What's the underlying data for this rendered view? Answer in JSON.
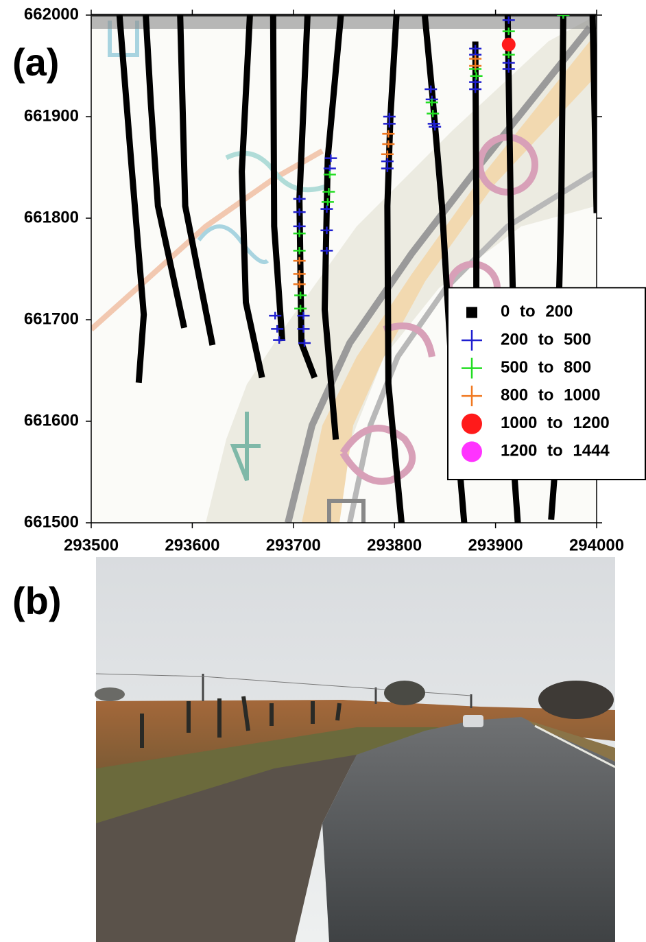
{
  "panel_labels": [
    "(a)",
    "(b)"
  ],
  "chart_data": {
    "type": "track",
    "xlim": [
      293500,
      294000
    ],
    "ylim": [
      661500,
      662000
    ],
    "xticks": [
      293500,
      293600,
      293700,
      293800,
      293900,
      294000
    ],
    "yticks": [
      661500,
      661600,
      661700,
      661800,
      661900,
      662000
    ],
    "legend": "right",
    "series": [
      {
        "name": "0 to 200",
        "color": "#000000",
        "marker": "square",
        "x": [
          [
            293528,
            293540,
            293552,
            293547
          ],
          [
            293554,
            293559,
            293566,
            293592
          ],
          [
            293588,
            293593,
            293620
          ],
          [
            293657,
            293649,
            293653,
            293669
          ],
          [
            293680,
            293681,
            293689
          ],
          [
            293714,
            293706,
            293708,
            293721
          ],
          [
            293747,
            293734,
            293731,
            293742
          ],
          [
            293802,
            293796,
            293793,
            293794,
            293807
          ],
          [
            293830,
            293837,
            293847,
            293857,
            293869
          ],
          [
            293880,
            293881,
            293881
          ],
          [
            293912,
            293915,
            293917,
            293919,
            293922
          ],
          [
            293967,
            293965,
            293963,
            293958,
            293955
          ],
          [
            293996,
            294000
          ]
        ],
        "y": [
          [
            662000,
            661850,
            661705,
            661638
          ],
          [
            662000,
            661913,
            661812,
            661692
          ],
          [
            662000,
            661812,
            661675
          ],
          [
            662000,
            661846,
            661717,
            661643
          ],
          [
            662000,
            661792,
            661679
          ],
          [
            662000,
            661819,
            661677,
            661643
          ],
          [
            662000,
            661859,
            661710,
            661582
          ],
          [
            662000,
            661900,
            661812,
            661637,
            661500
          ],
          [
            662000,
            661927,
            661812,
            661643,
            661500
          ],
          [
            661974,
            661812,
            661731
          ],
          [
            662000,
            661812,
            661731,
            661542,
            661500
          ],
          [
            662000,
            661812,
            661731,
            661542,
            661503
          ],
          [
            662000,
            661805
          ]
        ]
      },
      {
        "name": "200 to 500",
        "color": "#1f1fd0",
        "marker": "cross",
        "x": [
          [
            293682,
            293684,
            293686
          ],
          [
            293706,
            293706,
            293706
          ],
          [
            293710,
            293710,
            293711
          ],
          [
            293733,
            293733,
            293733
          ],
          [
            293737,
            293736
          ],
          [
            293795,
            293795,
            293793,
            293793
          ],
          [
            293836,
            293837,
            293839,
            293840
          ],
          [
            293880,
            293880,
            293880,
            293880
          ],
          [
            293913,
            293913,
            293913
          ],
          [
            293967
          ]
        ],
        "y": [
          [
            661704,
            661691,
            661680
          ],
          [
            661819,
            661806,
            661792
          ],
          [
            661704,
            661691,
            661677
          ],
          [
            661809,
            661788,
            661768
          ],
          [
            661859,
            661849
          ],
          [
            661900,
            661893,
            661856,
            661849
          ],
          [
            661927,
            661917,
            661893,
            661890
          ],
          [
            661967,
            661961,
            661934,
            661927
          ],
          [
            661995,
            661953,
            661947
          ],
          [
            662000
          ]
        ]
      },
      {
        "name": "500 to 800",
        "color": "#22dd22",
        "marker": "cross",
        "x": [
          [
            293706,
            293706,
            293707,
            293707
          ],
          [
            293736,
            293735,
            293734
          ],
          [
            293837,
            293838
          ],
          [
            293880,
            293881
          ],
          [
            293913,
            293913
          ],
          [
            293967
          ]
        ],
        "y": [
          [
            661785,
            661768,
            661724,
            661711
          ],
          [
            661843,
            661826,
            661816
          ],
          [
            661914,
            661903
          ],
          [
            661947,
            661940
          ],
          [
            661984,
            661961
          ],
          [
            662000
          ]
        ]
      },
      {
        "name": "800 to 1000",
        "color": "#f07820",
        "marker": "cross",
        "x": [
          [
            293706,
            293706,
            293706
          ],
          [
            293794,
            293794,
            293793
          ],
          [
            293880,
            293880
          ]
        ],
        "y": [
          [
            661758,
            661745,
            661735
          ],
          [
            661883,
            661873,
            661863
          ],
          [
            661957,
            661950
          ]
        ]
      },
      {
        "name": "1000 to 1200",
        "color": "#ff1a1a",
        "marker": "dot",
        "x": [
          [
            293913
          ]
        ],
        "y": [
          [
            661971
          ]
        ]
      },
      {
        "name": "1200 to 1444",
        "color": "#ff33ff",
        "marker": "dot",
        "x": [],
        "y": []
      }
    ]
  }
}
